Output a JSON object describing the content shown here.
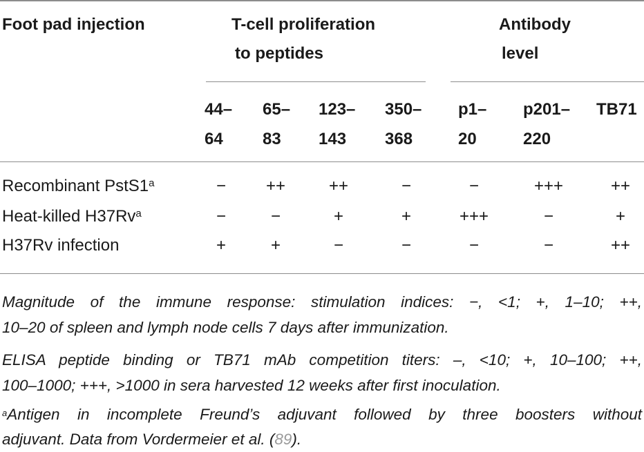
{
  "table": {
    "header": {
      "foot_pad": "Foot pad injection",
      "tcell_line1": "T-cell proliferation",
      "tcell_line2": "to peptides",
      "antibody_line1": "Antibody",
      "antibody_line2": "level"
    },
    "subheaders": [
      {
        "line1": "44–",
        "line2": "64"
      },
      {
        "line1": "65–",
        "line2": "83"
      },
      {
        "line1": "123–",
        "line2": "143"
      },
      {
        "line1": "350–",
        "line2": "368"
      },
      {
        "line1": "p1–",
        "line2": "20"
      },
      {
        "line1": "p201–",
        "line2": "220"
      },
      {
        "line1": "TB71",
        "line2": ""
      }
    ],
    "rows": [
      {
        "label": "Recombinant PstS1",
        "sup": "a",
        "cells": [
          "−",
          "++",
          "++",
          "−",
          "−",
          "+++",
          "++"
        ]
      },
      {
        "label": "Heat-killed H37Rv",
        "sup": "a",
        "cells": [
          "−",
          "−",
          "+",
          "+",
          "+++",
          "−",
          "+"
        ]
      },
      {
        "label": "H37Rv infection",
        "sup": "",
        "cells": [
          "+",
          "+",
          "−",
          "−",
          "−",
          "−",
          "++"
        ]
      }
    ]
  },
  "notes": {
    "n1_line1": "Magnitude of the immune response: stimulation indices: −, <1; +, 1–10; ++,",
    "n1_line2": "10–20 of spleen and lymph node cells 7 days after immunization.",
    "n2_line1": "ELISA peptide binding or TB71 mAb competition titers: –, <10; +, 10–100; ++,",
    "n2_line2": "100–1000; +++, >1000 in sera harvested 12 weeks after first inoculation.",
    "n3_sup": "a",
    "n3_line1": "Antigen in incomplete Freund’s adjuvant followed by three boosters without",
    "n3_line2_pre": "adjuvant. Data from Vordermeier et al. (",
    "n3_cite": "89",
    "n3_line2_post": ")."
  }
}
